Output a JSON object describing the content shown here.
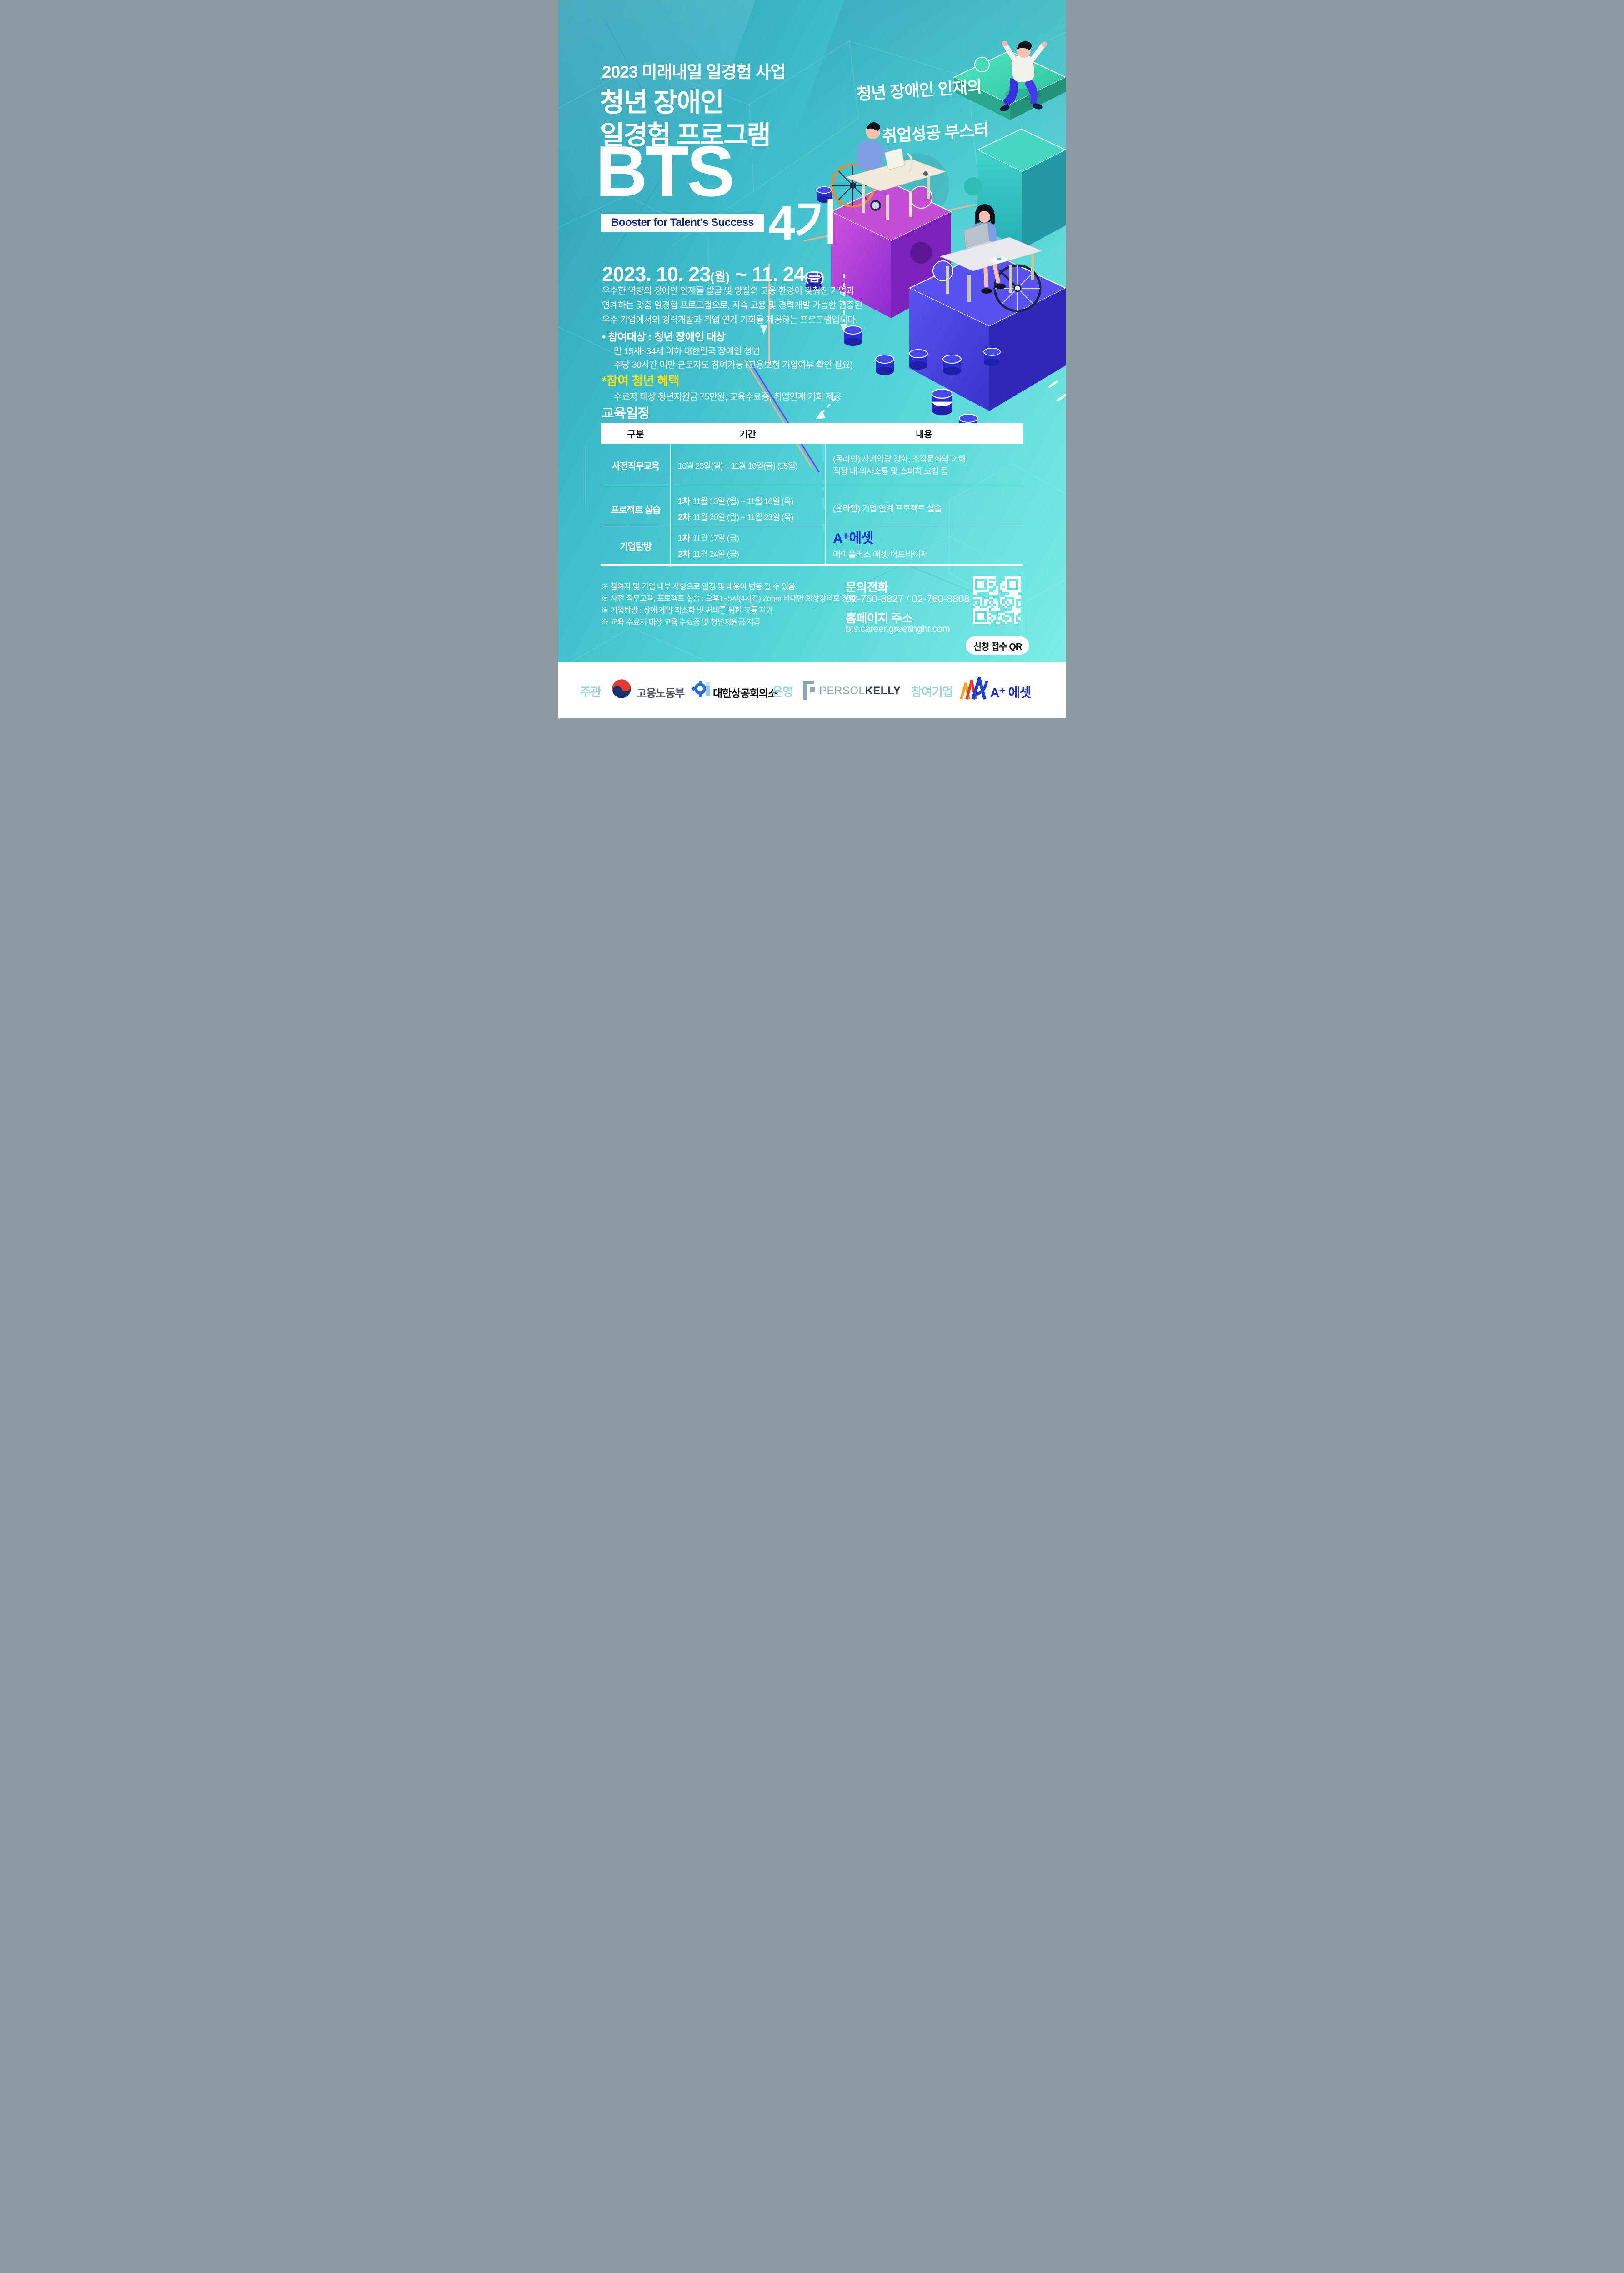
{
  "colors": {
    "accent_yellow": "#ffe215",
    "booster_navy": "#15297f",
    "aplus_blue": "#1b2fe0",
    "footer_label_teal": "#9bd8d3",
    "background_teal": "#3fb6c9"
  },
  "header": {
    "program_label": "2023 미래내일 일경험 사업",
    "title_line1": "청년 장애인",
    "title_line2": "일경험 프로그램",
    "acronym": "BTS",
    "acronym_subtitle": "Booster for Talent's Success",
    "cohort": "4기",
    "tagline_line1": "청년 장애인 인재의",
    "tagline_line2": "취업성공 부스터"
  },
  "period": {
    "d1": "2023. 10. 23",
    "w1": "(월)",
    "tilde": " ~ ",
    "d2": "11. 24",
    "w2": "(금)"
  },
  "intro": {
    "lines": [
      "우수한 역량의 장애인 인재를 발굴 및 양질의 고용 환경이 갖춰진 기업과",
      "연계하는 맞춤 일경험 프로그램으로, 지속 고용 및 경력개발 가능한 검증된",
      "우수 기업에서의 경력개발과 취업 연계 기회를 제공하는 프로그램입니다."
    ]
  },
  "target": {
    "title": "•  참여대상 : 청년 장애인 대상",
    "line1": "만 15세~34세 이하 대한민국 장애인 청년",
    "line2": "주당 30시간 미만 근로자도 참여가능 (고용보험 가입여부 확인 필요)"
  },
  "benefit": {
    "title": "*참여 청년 혜택",
    "line": "수료자 대상 청년지원금 75만원, 교육수료증, 취업연계 기회 제공"
  },
  "schedule": {
    "heading": "교육일정",
    "columns": [
      "구분",
      "기간",
      "내용"
    ],
    "rows": [
      {
        "category": "사전직무교육",
        "period": "10월 23일(월) ~ 11월 10일(금) (15일)",
        "content": "(온라인) 자기역량 강화, 조직문화의 이해,\n직장 내 의사소통 및 스피치 코칭 등"
      },
      {
        "category": "프로젝트 실습",
        "p1_label": "1차",
        "p1": "11월 13일 (월) ~ 11월 16일 (목)",
        "p2_label": "2차",
        "p2": "11월 20일 (월) ~ 11월 23일 (목)",
        "content": "(온라인) 기업 연계 프로젝트 실습"
      },
      {
        "category": "기업탐방",
        "p1_label": "1차",
        "p1": "11월 17일 (금)",
        "p2_label": "2차",
        "p2": "11월 24일 (금)",
        "logo": "A⁺에셋",
        "logo_sub": "에이플러스 에셋 어드바이저"
      }
    ]
  },
  "notes": [
    "※ 참여자 및 기업 내부 사항으로 일정 및 내용이 변동 될 수 있음",
    "※ 사전 직무교육, 프로젝트 실습 : 오후1~5시(4시간) Zoom 비대면 화상강의로 진행",
    "※ 기업탐방 : 장애 제약 최소화 및 편의를 위한 교통 지원",
    "※ 교육 수료자 대상 교육 수료증 및 청년지원금 지급"
  ],
  "contact": {
    "phone_title": "문의전화",
    "phone_numbers": "02-760-8827 / 02-760-8808",
    "site_title": "홈페이지 주소",
    "site_url": "bts.career.greetinghr.com",
    "qr_button": "신청 접수 QR"
  },
  "footer": {
    "host_label": "주관",
    "host_moel": "고용노동부",
    "host_kcci": "대한상공회의소",
    "operator_label": "운영",
    "operator_persol": "PERSOL",
    "operator_kelly": "KELLY",
    "participant_label": "참여기업",
    "participant_name": "A⁺ 에셋"
  }
}
